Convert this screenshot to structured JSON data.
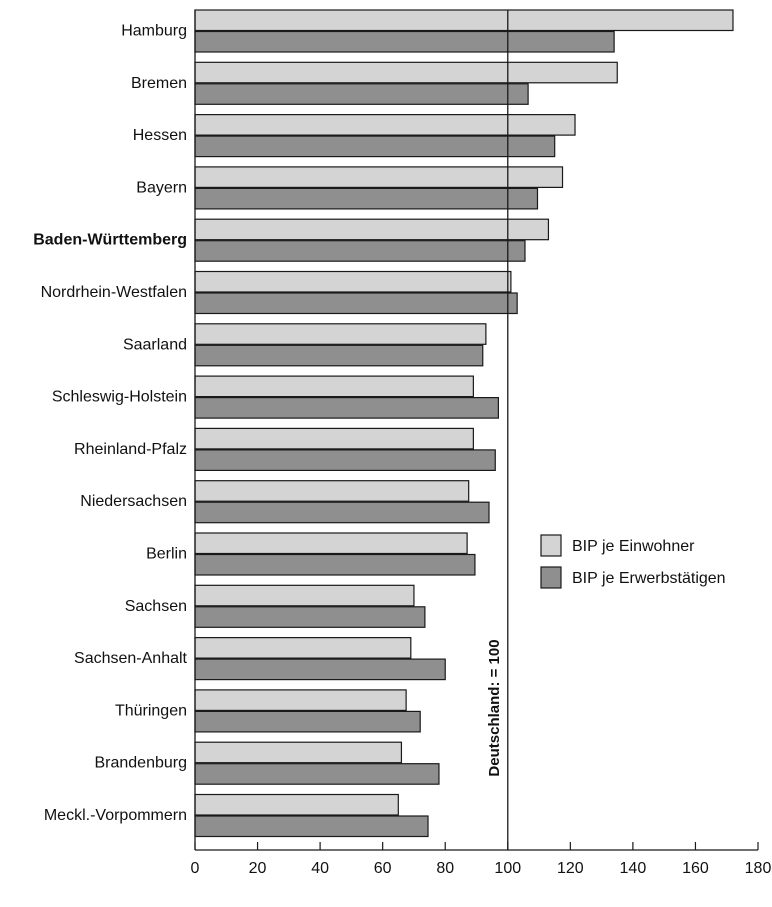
{
  "chart_data": {
    "type": "bar",
    "orientation": "horizontal",
    "categories": [
      "Hamburg",
      "Bremen",
      "Hessen",
      "Bayern",
      "Baden-Württemberg",
      "Nordrhein-Westfalen",
      "Saarland",
      "Schleswig-Holstein",
      "Rheinland-Pfalz",
      "Niedersachsen",
      "Berlin",
      "Sachsen",
      "Sachsen-Anhalt",
      "Thüringen",
      "Brandenburg",
      "Meckl.-Vorpommern"
    ],
    "bold_category": "Baden-Württemberg",
    "series": [
      {
        "name": "BIP je Einwohner",
        "color": "#d4d4d4",
        "values": [
          172,
          135,
          121.5,
          117.5,
          113,
          101,
          93,
          89,
          89,
          87.5,
          87,
          70,
          69,
          67.5,
          66,
          65
        ]
      },
      {
        "name": "BIP je Erwerbstätigen",
        "color": "#8f8f8f",
        "values": [
          134,
          106.5,
          115,
          109.5,
          105.5,
          103,
          92,
          97,
          96,
          94,
          89.5,
          73.5,
          80,
          72,
          78,
          74.5
        ]
      }
    ],
    "xlim": [
      0,
      180
    ],
    "xticks": [
      0,
      20,
      40,
      60,
      80,
      100,
      120,
      140,
      160,
      180
    ],
    "reference_line": {
      "value": 100,
      "label": "Deutschland: = 100"
    },
    "legend_position": "right",
    "grid": false
  }
}
